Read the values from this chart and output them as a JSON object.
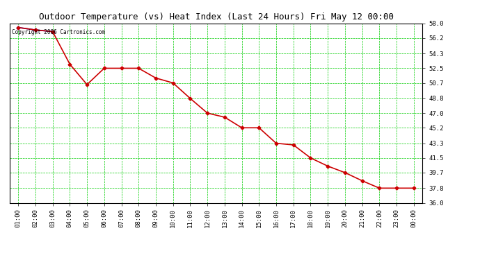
{
  "title": "Outdoor Temperature (vs) Heat Index (Last 24 Hours) Fri May 12 00:00",
  "copyright_text": "Copyright 2006 Cartronics.com",
  "x_labels": [
    "01:00",
    "02:00",
    "03:00",
    "04:00",
    "05:00",
    "06:00",
    "07:00",
    "08:00",
    "09:00",
    "10:00",
    "11:00",
    "12:00",
    "13:00",
    "14:00",
    "15:00",
    "16:00",
    "17:00",
    "18:00",
    "19:00",
    "20:00",
    "21:00",
    "22:00",
    "23:00",
    "00:00"
  ],
  "temp_values": [
    57.5,
    57.2,
    57.0,
    53.0,
    50.5,
    52.5,
    52.5,
    52.5,
    51.3,
    50.7,
    48.8,
    47.0,
    46.5,
    45.2,
    45.2,
    43.3,
    43.1,
    41.5,
    40.5,
    39.7,
    38.7,
    37.8,
    37.8,
    37.8
  ],
  "heat_values": [
    57.5,
    57.2,
    57.0,
    53.0,
    50.5,
    52.5,
    52.5,
    52.5,
    51.3,
    50.7,
    48.8,
    47.0,
    46.5,
    45.2,
    45.2,
    43.3,
    43.1,
    41.5,
    40.5,
    39.7,
    38.7,
    37.8,
    37.8,
    37.8
  ],
  "temp_color": "#cc0000",
  "heat_color": "#0000cc",
  "marker": "D",
  "marker_size": 2.5,
  "bg_color": "#ffffff",
  "plot_bg": "#ffffff",
  "grid_color": "#00cc00",
  "title_color": "#000000",
  "ylabel_right": [
    "58.0",
    "56.2",
    "54.3",
    "52.5",
    "50.7",
    "48.8",
    "47.0",
    "45.2",
    "43.3",
    "41.5",
    "39.7",
    "37.8",
    "36.0"
  ],
  "ymin": 36.0,
  "ymax": 58.0,
  "figsize": [
    6.9,
    3.75
  ],
  "dpi": 100
}
